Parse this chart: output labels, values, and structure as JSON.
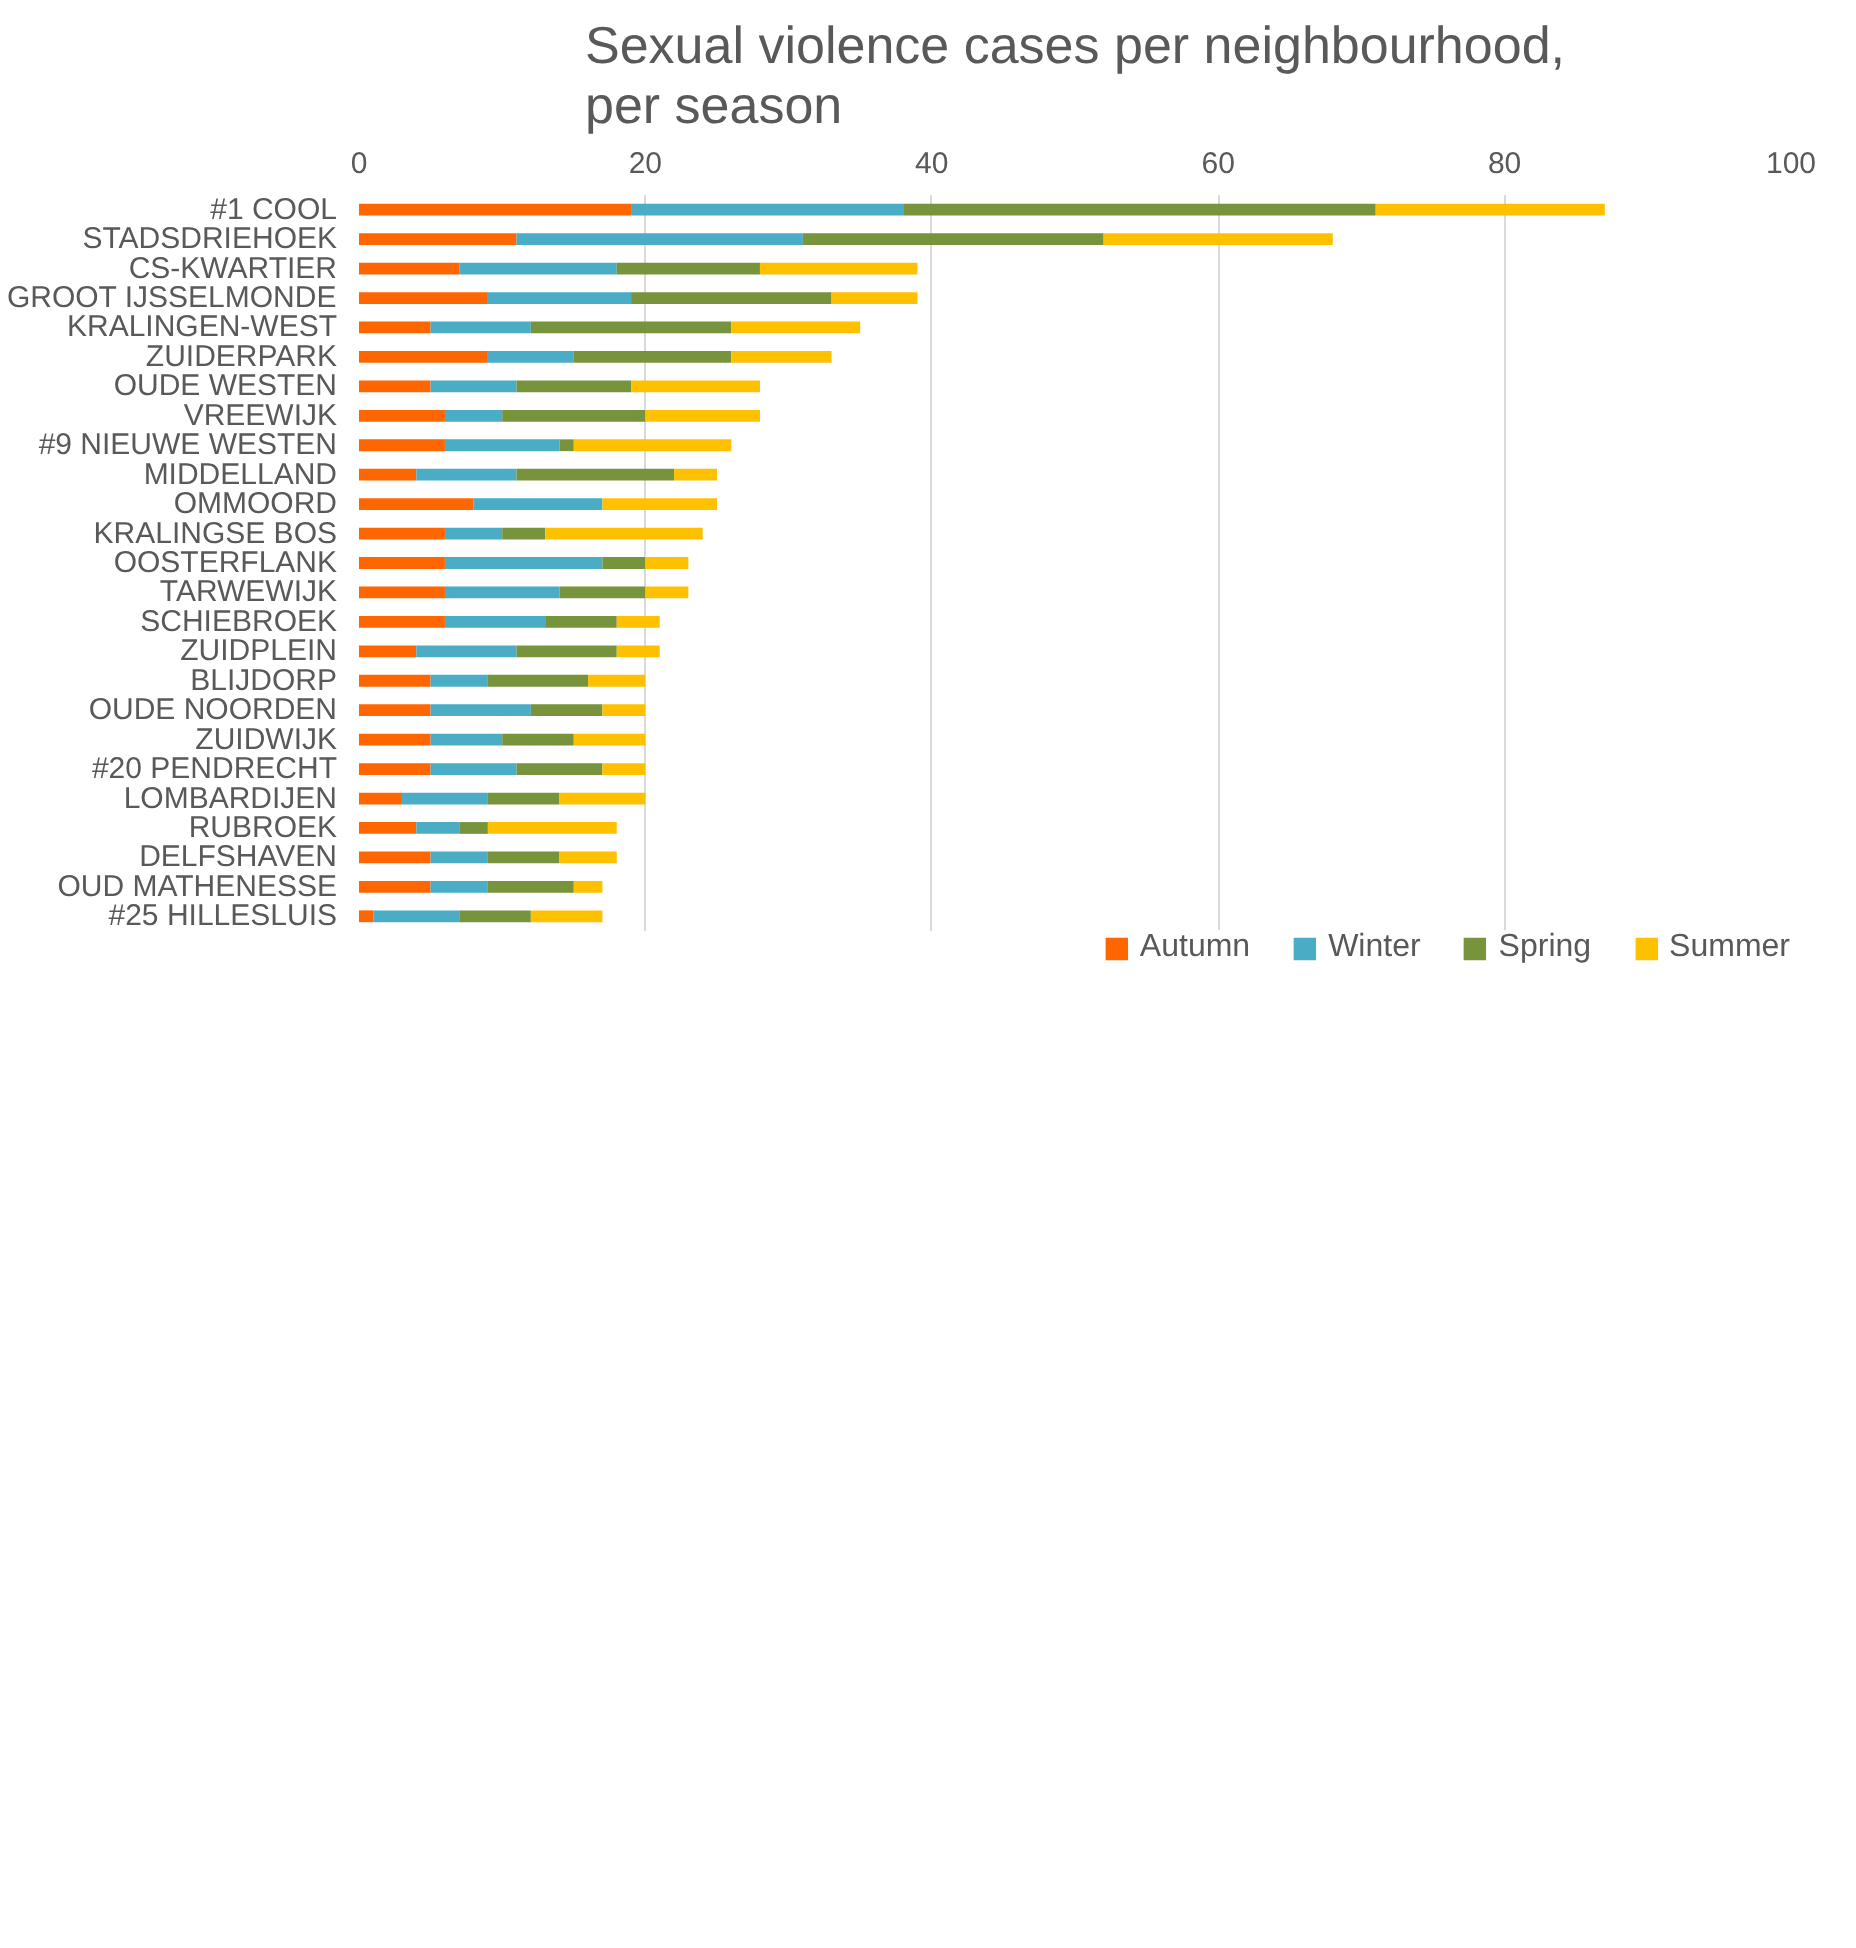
{
  "chart_data": {
    "type": "bar",
    "orientation": "horizontal",
    "stacked": true,
    "title": "Sexual violence cases per neighbourhood,\nper season",
    "categories": [
      "#1 COOL",
      "STADSDRIEHOEK",
      "CS-KWARTIER",
      "GROOT IJSSELMONDE",
      "KRALINGEN-WEST",
      "ZUIDERPARK",
      "OUDE WESTEN",
      "VREEWIJK",
      "#9 NIEUWE WESTEN",
      "MIDDELLAND",
      "OMMOORD",
      "KRALINGSE BOS",
      "OOSTERFLANK",
      "TARWEWIJK",
      "SCHIEBROEK",
      "ZUIDPLEIN",
      "BLIJDORP",
      "OUDE NOORDEN",
      "ZUIDWIJK",
      "#20 PENDRECHT",
      "LOMBARDIJEN",
      "RUBROEK",
      "DELFSHAVEN",
      "OUD MATHENESSE",
      "#25 HILLESLUIS"
    ],
    "series": [
      {
        "name": "Autumn",
        "color": "#ff6600",
        "values": [
          19,
          11,
          7,
          9,
          5,
          9,
          5,
          6,
          6,
          4,
          8,
          6,
          6,
          6,
          6,
          4,
          5,
          5,
          5,
          5,
          3,
          4,
          5,
          5,
          1
        ]
      },
      {
        "name": "Winter",
        "color": "#4bacc6",
        "values": [
          19,
          20,
          11,
          10,
          7,
          6,
          6,
          4,
          8,
          7,
          9,
          4,
          11,
          8,
          7,
          7,
          4,
          7,
          5,
          6,
          6,
          3,
          4,
          4,
          6
        ]
      },
      {
        "name": "Spring",
        "color": "#77933c",
        "values": [
          33,
          21,
          10,
          14,
          14,
          11,
          8,
          10,
          1,
          11,
          0,
          3,
          3,
          6,
          5,
          7,
          7,
          5,
          5,
          6,
          5,
          2,
          5,
          6,
          5
        ]
      },
      {
        "name": "Summer",
        "color": "#ffc000",
        "values": [
          16,
          16,
          11,
          6,
          9,
          7,
          9,
          8,
          11,
          3,
          8,
          11,
          3,
          3,
          3,
          3,
          4,
          3,
          5,
          3,
          6,
          9,
          4,
          2,
          5
        ]
      }
    ],
    "xlim": [
      0,
      100
    ],
    "xticks": [
      0,
      20,
      40,
      60,
      80,
      100
    ],
    "grid": "x",
    "legend": "bottom"
  }
}
